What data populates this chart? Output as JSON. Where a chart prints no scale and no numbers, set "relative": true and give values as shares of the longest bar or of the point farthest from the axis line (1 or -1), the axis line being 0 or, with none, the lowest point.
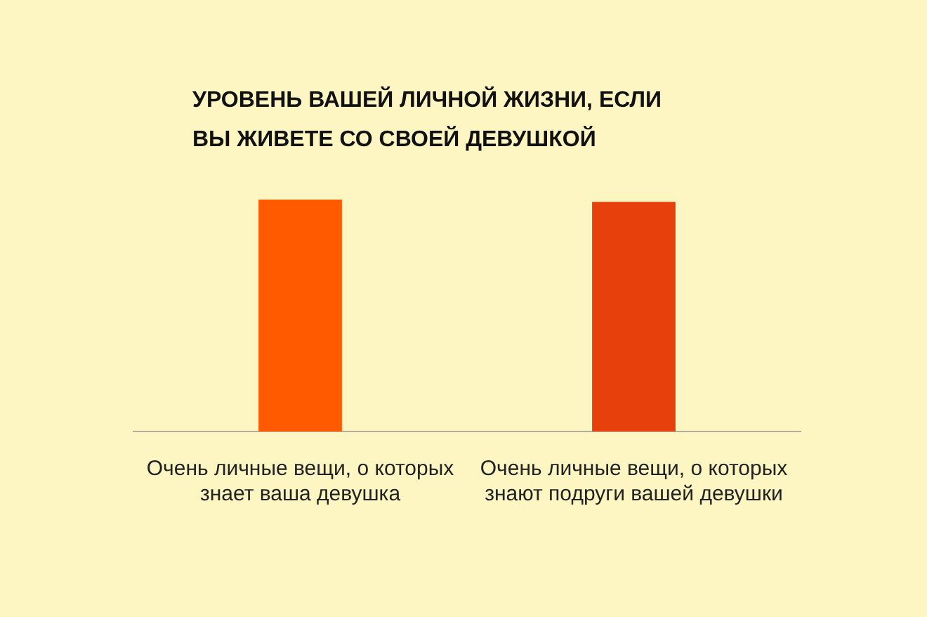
{
  "chart_data": {
    "type": "bar",
    "title": "УРОВЕНЬ ВАШЕЙ ЛИЧНОЙ ЖИЗНИ, ЕСЛИ ВЫ ЖИВЕТЕ СО СВОЕЙ ДЕВУШКОЙ",
    "categories": [
      "Очень личные вещи, о которых знает ваша девушка",
      "Очень личные вещи, о которых знают подруги вашей девушки"
    ],
    "values": [
      1,
      0.99
    ],
    "colors": [
      "#ff5a00",
      "#e8400c"
    ],
    "relative": true,
    "grid": false,
    "legend": false
  }
}
